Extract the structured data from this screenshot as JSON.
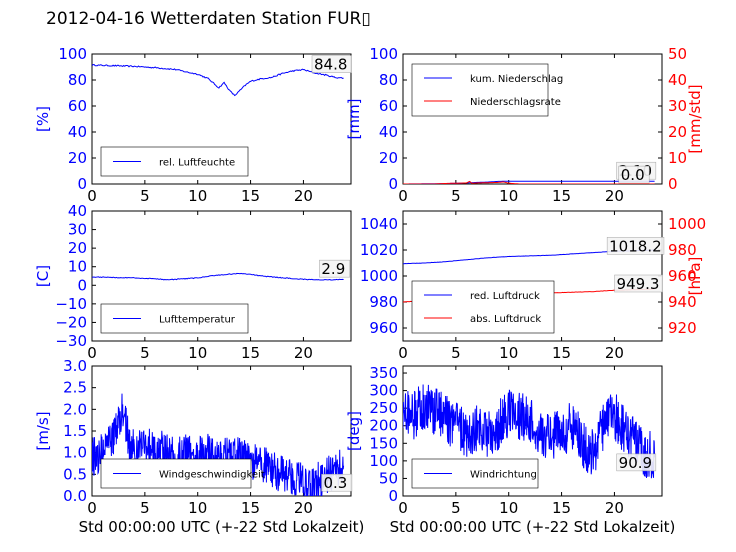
{
  "figure": {
    "title": "2012-04-16 Wetterdaten Station FUR▯"
  },
  "colors": {
    "primary": "#0000ff",
    "secondary": "#ff0000",
    "axis": "#000000"
  },
  "chart_data": [
    {
      "id": "humidity",
      "type": "line",
      "x_ticks": [
        "0",
        "5",
        "10",
        "15",
        "20"
      ],
      "xlim": [
        0,
        24.5
      ],
      "y_ticks": [
        "0",
        "20",
        "40",
        "60",
        "80",
        "100"
      ],
      "ylim": [
        0,
        100
      ],
      "ylabel": "[%]",
      "legend": {
        "placement": "lower-left",
        "entries": [
          "rel. Luftfeuchte"
        ]
      },
      "annotations": [
        {
          "text": "84.8",
          "x": 21.0,
          "y": 88
        }
      ],
      "series": [
        {
          "name": "rel. Luftfeuchte",
          "axis": "left",
          "color": "#0000ff",
          "noise": 0.5,
          "x": [
            0,
            2,
            4,
            6,
            8,
            9,
            10,
            11,
            12,
            12.5,
            13,
            13.5,
            14,
            14.5,
            15,
            16,
            17,
            18,
            19,
            20,
            21,
            22,
            23,
            23.8
          ],
          "y": [
            91.5,
            91,
            90.5,
            89.5,
            88,
            86,
            84.5,
            81,
            74,
            78,
            72,
            68,
            72,
            76,
            79,
            81,
            82,
            85,
            87,
            88,
            85.5,
            84,
            82,
            81.5
          ]
        }
      ]
    },
    {
      "id": "precip",
      "type": "line",
      "x_ticks": [
        "0",
        "5",
        "10",
        "15",
        "20"
      ],
      "xlim": [
        0,
        24.5
      ],
      "y_ticks": [
        "0",
        "20",
        "40",
        "60",
        "80",
        "100"
      ],
      "ylim": [
        0,
        100
      ],
      "ylabel": "[mm]",
      "y2_ticks": [
        "0",
        "10",
        "20",
        "30",
        "40",
        "50"
      ],
      "y2lim": [
        0,
        50
      ],
      "y2label": "[mm/std]",
      "legend": {
        "placement": "upper-left",
        "entries": [
          "kum. Niederschlag",
          "Niederschlagsrate"
        ]
      },
      "annotations": [
        {
          "text": "2.10",
          "x": 20.4,
          "y": 6
        },
        {
          "text": "0.0",
          "x": 20.6,
          "y": 3
        }
      ],
      "series": [
        {
          "name": "kum. Niederschlag",
          "axis": "left",
          "color": "#0000ff",
          "noise": 0,
          "x": [
            0,
            3,
            5,
            6,
            7,
            8,
            9,
            10,
            12,
            15,
            20,
            23.8
          ],
          "y": [
            0,
            0.2,
            0.5,
            0.8,
            1.2,
            1.5,
            2.0,
            2.1,
            2.1,
            2.1,
            2.1,
            2.1
          ]
        },
        {
          "name": "Niederschlagsrate",
          "axis": "right",
          "color": "#ff0000",
          "noise": 0,
          "x": [
            0,
            3,
            4,
            5,
            6,
            6.3,
            6.5,
            7,
            8,
            9,
            9.5,
            10,
            11,
            23.8
          ],
          "y": [
            0,
            0,
            0.2,
            0.3,
            0.4,
            1.0,
            0.3,
            0.4,
            0.5,
            0.6,
            0.8,
            0.3,
            0,
            0
          ]
        }
      ]
    },
    {
      "id": "temperature",
      "type": "line",
      "x_ticks": [
        "0",
        "5",
        "10",
        "15",
        "20"
      ],
      "xlim": [
        0,
        24.5
      ],
      "y_ticks": [
        "−30",
        "−20",
        "−10",
        "0",
        "10",
        "20",
        "30",
        "40"
      ],
      "ylim": [
        -30,
        40
      ],
      "ylabel": "[C]",
      "legend": {
        "placement": "lower-left",
        "entries": [
          "Lufttemperatur"
        ]
      },
      "annotations": [
        {
          "text": "2.9",
          "x": 21.7,
          "y": 6
        }
      ],
      "series": [
        {
          "name": "Lufttemperatur",
          "axis": "left",
          "color": "#0000ff",
          "noise": 0.2,
          "x": [
            0,
            2,
            4,
            6,
            7,
            8,
            9,
            10,
            11,
            12,
            13,
            14,
            15,
            16,
            17,
            18,
            19,
            20,
            21,
            22,
            23,
            23.8
          ],
          "y": [
            4.5,
            4.2,
            4.0,
            3.5,
            3.0,
            3.2,
            3.6,
            4.0,
            4.8,
            5.5,
            6.0,
            6.3,
            6.0,
            5.0,
            4.5,
            4.0,
            3.6,
            3.2,
            3.0,
            2.9,
            3.0,
            3.1
          ]
        }
      ]
    },
    {
      "id": "pressure",
      "type": "line",
      "x_ticks": [
        "0",
        "5",
        "10",
        "15",
        "20"
      ],
      "xlim": [
        0,
        24.5
      ],
      "y_ticks": [
        "960",
        "980",
        "1000",
        "1020",
        "1040"
      ],
      "ylim": [
        950,
        1050
      ],
      "y2_ticks": [
        "920",
        "940",
        "960",
        "980",
        "1000"
      ],
      "y2lim": [
        910,
        1010
      ],
      "y2label": "[hPa]",
      "legend": {
        "placement": "lower-left",
        "entries": [
          "red. Luftdruck",
          "abs. Luftdruck"
        ]
      },
      "annotations": [
        {
          "text": "1018.2",
          "x": 19.5,
          "y": 1019
        },
        {
          "text": "949.3",
          "x": 20.2,
          "y": 990
        }
      ],
      "series": [
        {
          "name": "red. Luftdruck",
          "axis": "left",
          "color": "#0000ff",
          "noise": 0.1,
          "x": [
            0,
            2,
            4,
            6,
            8,
            10,
            12,
            14,
            16,
            18,
            20,
            22,
            23.8
          ],
          "y": [
            1009.5,
            1010,
            1011,
            1012.5,
            1014,
            1015,
            1015.5,
            1016,
            1017,
            1018,
            1019,
            1019.5,
            1020
          ]
        },
        {
          "name": "abs. Luftdruck",
          "axis": "right",
          "color": "#ff0000",
          "noise": 0.1,
          "x": [
            0,
            2,
            4,
            6,
            8,
            10,
            12,
            14,
            16,
            18,
            20,
            22,
            23.8
          ],
          "y": [
            940,
            941,
            942,
            943,
            944.5,
            945.5,
            946.5,
            947,
            947.5,
            948,
            949,
            949.5,
            950
          ]
        }
      ]
    },
    {
      "id": "windspeed",
      "type": "line",
      "x_ticks": [
        "0",
        "5",
        "10",
        "15",
        "20"
      ],
      "xlim": [
        0,
        24.5
      ],
      "y_ticks": [
        "0.0",
        "0.5",
        "1.0",
        "1.5",
        "2.0",
        "2.5",
        "3.0"
      ],
      "ylim": [
        0,
        3.0
      ],
      "ylabel": "[m/s]",
      "xlabel": "Std 00:00:00 UTC (+-22 Std Lokalzeit)",
      "legend": {
        "placement": "lower-center",
        "entries": [
          "Windgeschwindigkeit"
        ]
      },
      "annotations": [
        {
          "text": "0.3",
          "x": 21.9,
          "y": 0.18
        }
      ],
      "series": [
        {
          "name": "Windgeschwindigkeit",
          "axis": "left",
          "color": "#0000ff",
          "noise": 0.45,
          "samples": 3,
          "x": [
            0,
            1,
            2,
            2.5,
            3,
            3.5,
            4,
            5,
            6,
            7,
            8,
            9,
            10,
            11,
            12,
            13,
            14,
            15,
            16,
            17,
            18,
            19,
            20,
            21,
            22,
            23,
            23.8
          ],
          "y": [
            0.9,
            1.0,
            1.3,
            1.8,
            2.0,
            1.2,
            1.1,
            1.2,
            1.0,
            1.1,
            0.9,
            1.0,
            0.9,
            1.0,
            0.8,
            1.0,
            0.9,
            0.8,
            0.8,
            0.6,
            0.5,
            0.4,
            0.3,
            0.3,
            0.4,
            0.6,
            0.7
          ]
        }
      ]
    },
    {
      "id": "winddir",
      "type": "line",
      "x_ticks": [
        "0",
        "5",
        "10",
        "15",
        "20"
      ],
      "xlim": [
        0,
        24.5
      ],
      "y_ticks": [
        "0",
        "50",
        "100",
        "150",
        "200",
        "250",
        "300",
        "350"
      ],
      "ylim": [
        0,
        370
      ],
      "ylabel": "[deg]",
      "xlabel": "Std 00:00:00 UTC (+-22 Std Lokalzeit)",
      "legend": {
        "placement": "lower-left",
        "entries": [
          "Windrichtung"
        ]
      },
      "annotations": [
        {
          "text": "90.9",
          "x": 20.4,
          "y": 80
        }
      ],
      "series": [
        {
          "name": "Windrichtung",
          "axis": "left",
          "color": "#0000ff",
          "noise": 70,
          "samples": 3,
          "x": [
            0,
            1,
            2,
            3,
            4,
            5,
            6,
            7,
            8,
            9,
            10,
            11,
            12,
            13,
            14,
            15,
            16,
            17,
            18,
            19,
            20,
            21,
            22,
            23,
            23.8
          ],
          "y": [
            250,
            230,
            260,
            240,
            220,
            200,
            180,
            190,
            170,
            200,
            240,
            230,
            210,
            180,
            170,
            180,
            200,
            150,
            120,
            200,
            230,
            180,
            150,
            120,
            110
          ]
        }
      ]
    }
  ]
}
